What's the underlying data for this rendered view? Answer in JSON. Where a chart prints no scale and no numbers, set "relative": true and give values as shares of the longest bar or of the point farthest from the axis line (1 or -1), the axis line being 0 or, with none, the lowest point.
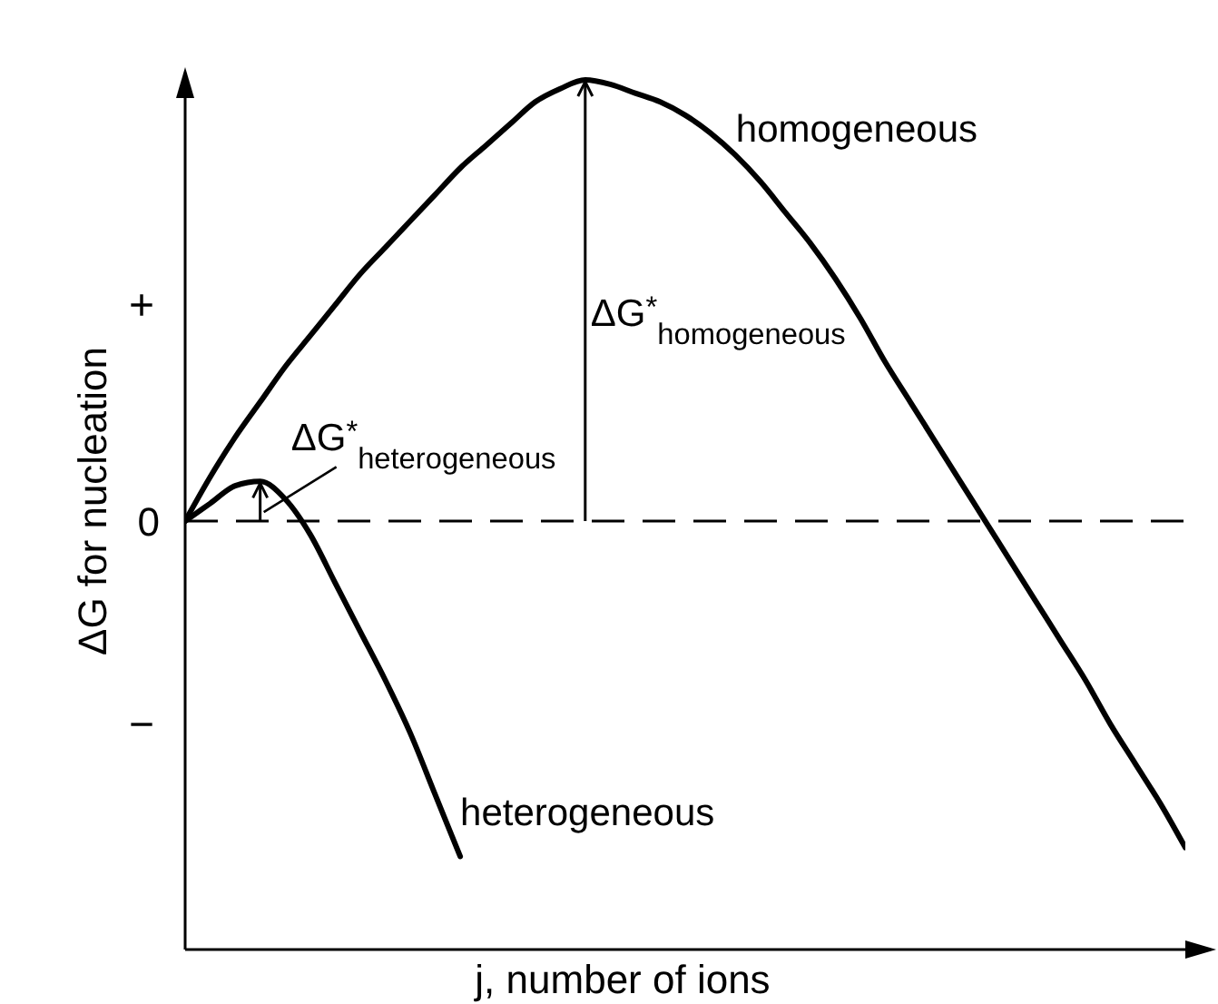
{
  "chart_data": {
    "type": "line",
    "xlabel": "j, number of ions",
    "ylabel": "ΔG for nucleation",
    "relative": true,
    "marker": "none",
    "line_style": "solid",
    "categories": [
      null,
      null,
      null,
      null,
      null,
      null,
      null,
      null,
      null,
      null,
      null,
      null,
      null,
      null,
      null,
      null,
      null,
      null,
      null,
      null,
      null,
      null,
      null,
      null,
      null,
      null,
      null,
      null,
      null,
      null,
      null,
      null,
      null,
      null,
      null,
      null,
      null,
      null,
      null,
      null,
      null
    ],
    "series": [
      {
        "name": "homogeneous",
        "color": "#000000",
        "values": [
          0,
          0.1,
          0.19,
          0.27,
          0.35,
          0.42,
          0.49,
          0.56,
          0.62,
          0.68,
          0.74,
          0.8,
          0.85,
          0.9,
          0.95,
          0.98,
          1,
          0.99,
          0.97,
          0.95,
          0.92,
          0.88,
          0.83,
          0.77,
          0.7,
          0.63,
          0.55,
          0.46,
          0.36,
          0.27,
          0.18,
          0.09,
          0,
          -0.09,
          -0.18,
          -0.27,
          -0.36,
          -0.46,
          -0.55,
          -0.64,
          -0.74
        ]
      },
      {
        "name": "heterogeneous",
        "color": "#000000",
        "values": [
          0,
          0.04,
          0.08,
          0.09,
          0.05,
          -0.03,
          -0.14,
          -0.25,
          -0.36,
          -0.48,
          -0.62,
          -0.76,
          null,
          null,
          null,
          null,
          null,
          null,
          null,
          null,
          null,
          null,
          null,
          null,
          null,
          null,
          null,
          null,
          null,
          null,
          null,
          null,
          null,
          null,
          null,
          null,
          null,
          null,
          null,
          null,
          null
        ]
      }
    ],
    "ref_lines": [
      {
        "axis": "y",
        "value": 0,
        "label": "0",
        "line_style": "dashed",
        "color": "#000000"
      }
    ],
    "annotations": [
      "+",
      "−",
      "ΔG$^{*}$$_{heterogeneous}$",
      "ΔG$^{*}$$_{homogeneous}$"
    ]
  }
}
